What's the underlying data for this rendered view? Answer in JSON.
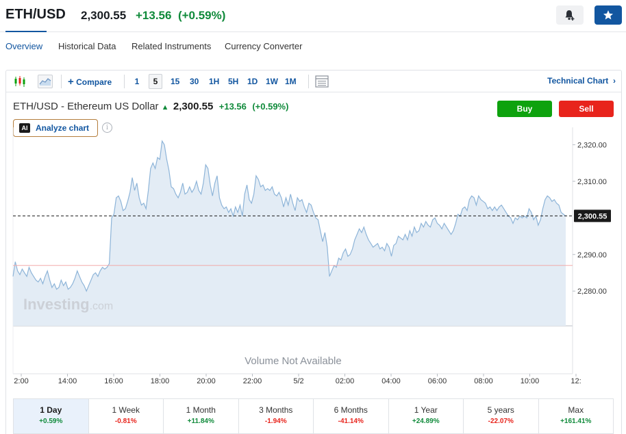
{
  "header": {
    "symbol": "ETH/USD",
    "price": "2,300.55",
    "change": "+13.56",
    "change_pct": "(+0.59%)"
  },
  "tabs": [
    {
      "label": "Overview",
      "active": true
    },
    {
      "label": "Historical Data",
      "active": false
    },
    {
      "label": "Related Instruments",
      "active": false
    },
    {
      "label": "Currency Converter",
      "active": false
    }
  ],
  "toolbar": {
    "compare_label": "Compare",
    "intervals": [
      "1",
      "5",
      "15",
      "30",
      "1H",
      "5H",
      "1D",
      "1W",
      "1M"
    ],
    "active_interval": "5",
    "technical_chart_label": "Technical Chart"
  },
  "chart_header": {
    "name": "ETH/USD - Ethereum US Dollar",
    "price": "2,300.55",
    "change": "+13.56",
    "change_pct": "(+0.59%)",
    "buy_label": "Buy",
    "sell_label": "Sell",
    "analyze_label": "Analyze chart",
    "ai_badge": "AI"
  },
  "chart_data": {
    "type": "area",
    "x_ticks": [
      "2:00",
      "14:00",
      "16:00",
      "18:00",
      "20:00",
      "22:00",
      "5/2",
      "02:00",
      "04:00",
      "06:00",
      "08:00",
      "10:00",
      "12:"
    ],
    "y_ticks": [
      "2,320.00",
      "2,310.00",
      "2,290.00",
      "2,280.00"
    ],
    "ylim": [
      2270.5,
      2324
    ],
    "current_price": 2300.55,
    "current_price_label": "2,300.55",
    "previous_close": 2287.0,
    "watermark": "Investing.com",
    "volume_text": "Volume Not Available",
    "series_color": "#8db4d8",
    "fill_color": "#e3ecf5",
    "values": [
      2284.0,
      2288.0,
      2285.5,
      2284.5,
      2286.0,
      2285.0,
      2284.0,
      2286.5,
      2285.0,
      2284.0,
      2283.0,
      2282.5,
      2283.5,
      2282.0,
      2284.0,
      2285.5,
      2283.0,
      2281.0,
      2282.0,
      2280.5,
      2281.0,
      2283.0,
      2281.5,
      2282.5,
      2280.5,
      2281.0,
      2282.0,
      2283.5,
      2285.5,
      2284.0,
      2282.5,
      2281.5,
      2280.0,
      2281.5,
      2283.0,
      2284.5,
      2285.0,
      2284.0,
      2285.5,
      2286.5,
      2286.0,
      2286.5,
      2287.5,
      2300.0,
      2301.0,
      2305.5,
      2306.0,
      2304.5,
      2302.0,
      2302.5,
      2304.5,
      2307.0,
      2311.0,
      2307.5,
      2309.5,
      2305.5,
      2303.5,
      2304.0,
      2302.5,
      2307.5,
      2313.5,
      2315.0,
      2313.5,
      2316.5,
      2316.0,
      2321.0,
      2320.0,
      2316.0,
      2313.0,
      2308.5,
      2308.0,
      2306.5,
      2305.5,
      2307.0,
      2309.5,
      2306.5,
      2307.0,
      2308.5,
      2307.0,
      2308.0,
      2310.0,
      2307.5,
      2306.5,
      2309.5,
      2314.5,
      2313.5,
      2309.0,
      2306.0,
      2309.5,
      2311.5,
      2305.5,
      2303.5,
      2302.5,
      2303.0,
      2301.5,
      2302.5,
      2300.5,
      2303.0,
      2301.5,
      2303.5,
      2300.5,
      2306.5,
      2309.0,
      2305.0,
      2304.0,
      2306.5,
      2311.5,
      2310.5,
      2308.5,
      2309.0,
      2307.5,
      2308.0,
      2307.5,
      2308.5,
      2306.5,
      2306.0,
      2307.0,
      2305.5,
      2303.0,
      2305.5,
      2303.5,
      2306.5,
      2304.0,
      2302.0,
      2305.5,
      2304.5,
      2305.0,
      2303.0,
      2301.5,
      2304.0,
      2303.5,
      2301.5,
      2300.0,
      2299.5,
      2296.5,
      2293.5,
      2296.0,
      2292.0,
      2284.0,
      2285.5,
      2287.0,
      2286.5,
      2289.0,
      2288.5,
      2290.5,
      2291.5,
      2289.5,
      2290.0,
      2291.5,
      2294.0,
      2295.5,
      2297.0,
      2296.0,
      2297.5,
      2295.5,
      2294.0,
      2293.0,
      2292.0,
      2292.5,
      2293.0,
      2291.5,
      2292.0,
      2291.0,
      2293.0,
      2292.0,
      2289.5,
      2292.5,
      2293.0,
      2295.0,
      2294.5,
      2294.0,
      2295.5,
      2294.0,
      2296.5,
      2295.0,
      2297.5,
      2296.0,
      2296.5,
      2298.5,
      2297.5,
      2299.0,
      2298.0,
      2297.5,
      2299.5,
      2300.0,
      2298.5,
      2298.0,
      2297.0,
      2298.5,
      2297.5,
      2296.5,
      2295.5,
      2296.5,
      2298.5,
      2301.0,
      2300.5,
      2302.5,
      2303.0,
      2302.0,
      2305.0,
      2306.0,
      2305.5,
      2303.5,
      2306.0,
      2305.0,
      2304.5,
      2304.0,
      2302.5,
      2303.0,
      2302.0,
      2303.0,
      2302.0,
      2303.0,
      2303.5,
      2302.5,
      2301.5,
      2300.5,
      2300.0,
      2298.5,
      2300.0,
      2299.5,
      2300.5,
      2300.0,
      2300.5,
      2300.0,
      2302.5,
      2301.5,
      2299.5,
      2300.5,
      2298.0,
      2299.5,
      2302.5,
      2305.0,
      2306.0,
      2305.5,
      2304.5,
      2305.0,
      2304.0,
      2303.5,
      2301.5,
      2301.0,
      2300.5
    ]
  },
  "periods": [
    {
      "label": "1 Day",
      "value": "+0.59%",
      "positive": true,
      "active": true
    },
    {
      "label": "1 Week",
      "value": "-0.81%",
      "positive": false,
      "active": false
    },
    {
      "label": "1 Month",
      "value": "+11.84%",
      "positive": true,
      "active": false
    },
    {
      "label": "3 Months",
      "value": "-1.94%",
      "positive": false,
      "active": false
    },
    {
      "label": "6 Months",
      "value": "-41.14%",
      "positive": false,
      "active": false
    },
    {
      "label": "1 Year",
      "value": "+24.89%",
      "positive": true,
      "active": false
    },
    {
      "label": "5 years",
      "value": "-22.07%",
      "positive": false,
      "active": false
    },
    {
      "label": "Max",
      "value": "+161.41%",
      "positive": true,
      "active": false
    }
  ]
}
